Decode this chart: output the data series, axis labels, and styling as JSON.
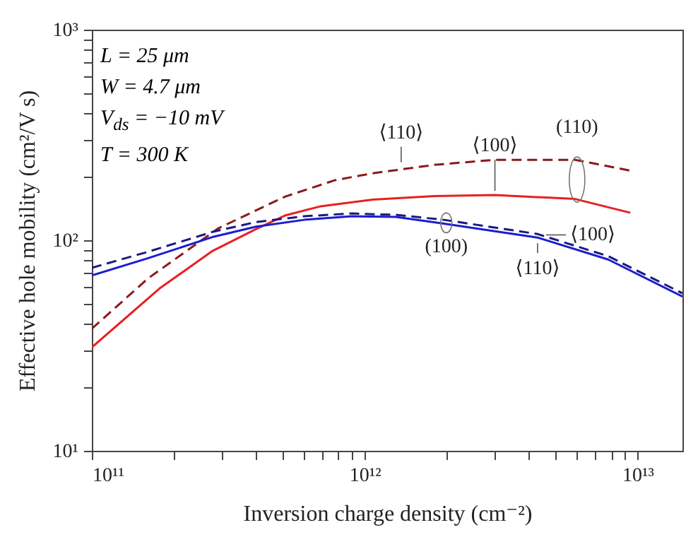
{
  "chart_data": {
    "type": "line",
    "xlabel": "Inversion charge density (cm⁻²)",
    "ylabel": "Effective hole mobility (cm²/V s)",
    "log": "xy",
    "grid": false,
    "marker": "none",
    "xlim": [
      100000000000.0,
      14600000000000.0
    ],
    "xticks": [
      {
        "value": 100000000000.0,
        "label": "10¹¹"
      },
      {
        "value": 200000000000.0,
        "label": null
      },
      {
        "value": 300000000000.0,
        "label": null
      },
      {
        "value": 400000000000.0,
        "label": null
      },
      {
        "value": 500000000000.0,
        "label": null
      },
      {
        "value": 600000000000.0,
        "label": null
      },
      {
        "value": 700000000000.0,
        "label": null
      },
      {
        "value": 800000000000.0,
        "label": null
      },
      {
        "value": 900000000000.0,
        "label": null
      },
      {
        "value": 1000000000000.0,
        "label": "10¹²"
      },
      {
        "value": 2000000000000.0,
        "label": null
      },
      {
        "value": 3000000000000.0,
        "label": null
      },
      {
        "value": 4000000000000.0,
        "label": null
      },
      {
        "value": 5000000000000.0,
        "label": null
      },
      {
        "value": 6000000000000.0,
        "label": null
      },
      {
        "value": 7000000000000.0,
        "label": null
      },
      {
        "value": 8000000000000.0,
        "label": null
      },
      {
        "value": 9000000000000.0,
        "label": null
      },
      {
        "value": 10000000000000.0,
        "label": "10¹³"
      }
    ],
    "ylim": [
      10,
      1000
    ],
    "yticks": [
      {
        "value": 10,
        "label": "10¹"
      },
      {
        "value": 20,
        "label": null
      },
      {
        "value": 30,
        "label": null
      },
      {
        "value": 40,
        "label": null
      },
      {
        "value": 50,
        "label": null
      },
      {
        "value": 60,
        "label": null
      },
      {
        "value": 70,
        "label": null
      },
      {
        "value": 80,
        "label": null
      },
      {
        "value": 90,
        "label": null
      },
      {
        "value": 100,
        "label": "10²"
      },
      {
        "value": 200,
        "label": null
      },
      {
        "value": 300,
        "label": null
      },
      {
        "value": 400,
        "label": null
      },
      {
        "value": 500,
        "label": null
      },
      {
        "value": 600,
        "label": null
      },
      {
        "value": 700,
        "label": null
      },
      {
        "value": 800,
        "label": null
      },
      {
        "value": 900,
        "label": null
      },
      {
        "value": 1000,
        "label": "10³"
      }
    ],
    "series": [
      {
        "color": "#e82020",
        "line_style": "solid",
        "x": [
          100000000000.0,
          177000000000.0,
          277000000000.0,
          400000000000.0,
          510000000000.0,
          690000000000.0,
          1070000000000.0,
          1800000000000.0,
          3000000000000.0,
          5900000000000.0,
          9400000000000.0
        ],
        "values": [
          31,
          59,
          89,
          113,
          131,
          145,
          156,
          162,
          164,
          157,
          135
        ]
      },
      {
        "color": "#8b1a1a",
        "line_style": "dashed",
        "x": [
          100000000000.0,
          161000000000.0,
          291000000000.0,
          510000000000.0,
          780000000000.0,
          1070000000000.0,
          1800000000000.0,
          3000000000000.0,
          5900000000000.0,
          9400000000000.0
        ],
        "values": [
          38,
          66,
          114,
          161,
          193,
          208,
          228,
          241,
          241,
          214
        ]
      },
      {
        "color": "#1c1cd0",
        "line_style": "solid",
        "x": [
          100000000000.0,
          160000000000.0,
          280000000000.0,
          400000000000.0,
          600000000000.0,
          900000000000.0,
          1300000000000.0,
          1950000000000.0,
          4300000000000.0,
          7800000000000.0,
          14600000000000.0
        ],
        "values": [
          68,
          82,
          104,
          116,
          125,
          130,
          129,
          120,
          103,
          81,
          54
        ]
      },
      {
        "color": "#1a1a80",
        "line_style": "dashed",
        "x": [
          100000000000.0,
          160000000000.0,
          280000000000.0,
          400000000000.0,
          600000000000.0,
          900000000000.0,
          1300000000000.0,
          1950000000000.0,
          4300000000000.0,
          7800000000000.0,
          14600000000000.0
        ],
        "values": [
          74,
          88,
          110,
          122,
          130,
          134,
          132,
          125,
          107,
          84,
          56
        ]
      }
    ],
    "annotations": [
      "L = 25 μm",
      "W = 4.7 μm",
      "V$_{ds}$ = −10 mV",
      "T = 300 K",
      {
        "text": "⟨110⟩",
        "x": 1360000000000.0,
        "y": 224
      },
      {
        "text": "⟨100⟩",
        "x": 3000000000000.0,
        "y": 164
      },
      {
        "text": "(110)",
        "x": 6000000000000.0,
        "y": 241
      },
      {
        "text": "(100)",
        "x": 1990000000000.0,
        "y": 121
      },
      {
        "text": "⟨100⟩",
        "x": 4460000000000.0,
        "y": 106
      },
      {
        "text": "⟨110⟩",
        "x": 4300000000000.0,
        "y": 103
      }
    ]
  }
}
